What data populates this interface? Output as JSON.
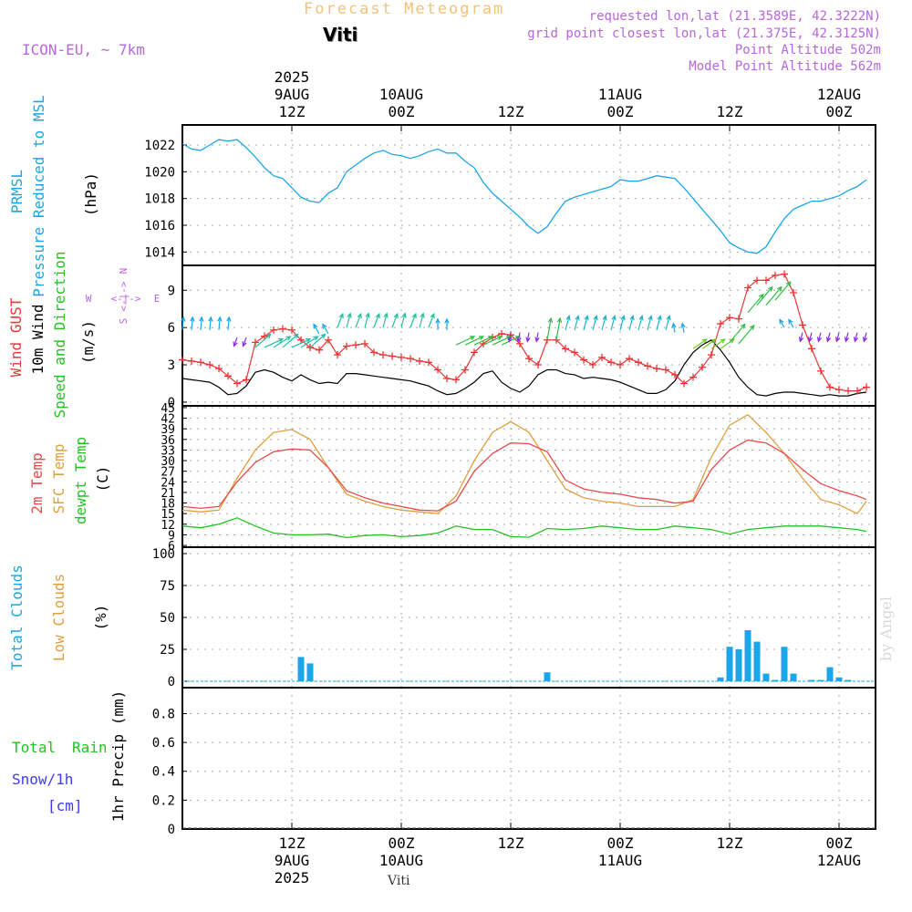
{
  "header": {
    "title": "Forecast Meteogram",
    "location": "Viti",
    "model": "ICON-EU, ~ 7km",
    "requested": "requested lon,lat (21.3589E, 42.3222N)",
    "gridpoint": "grid point closest lon,lat (21.375E, 42.3125N)",
    "point_alt": "Point Altitude 502m",
    "model_alt": "Model Point Altitude 562m",
    "footer_location": "Viti",
    "watermark": "by Angel"
  },
  "time_axis": {
    "top": [
      {
        "x": 12,
        "lines": [
          "2025",
          "9AUG",
          "12Z"
        ]
      },
      {
        "x": 24,
        "lines": [
          "10AUG",
          "00Z"
        ]
      },
      {
        "x": 36,
        "lines": [
          "12Z"
        ]
      },
      {
        "x": 48,
        "lines": [
          "11AUG",
          "00Z"
        ]
      },
      {
        "x": 60,
        "lines": [
          "12Z"
        ]
      },
      {
        "x": 72,
        "lines": [
          "12AUG",
          "00Z"
        ]
      }
    ],
    "bottom": [
      {
        "x": 12,
        "lines": [
          "12Z",
          "9AUG",
          "2025"
        ]
      },
      {
        "x": 24,
        "lines": [
          "00Z",
          "10AUG"
        ]
      },
      {
        "x": 36,
        "lines": [
          "12Z"
        ]
      },
      {
        "x": 48,
        "lines": [
          "00Z",
          "11AUG"
        ]
      },
      {
        "x": 60,
        "lines": [
          "12Z"
        ]
      },
      {
        "x": 72,
        "lines": [
          "00Z",
          "12AUG"
        ]
      }
    ]
  },
  "colors": {
    "pressure": "#1aa6e8",
    "gust": "#ee3535",
    "wind": "#000000",
    "temp2m": "#e84a4a",
    "sfc": "#dfa040",
    "dewpt": "#22c422",
    "total_clouds": "#1aa6e8",
    "low_clouds": "#dfa040",
    "rain": "#22c422",
    "snow": "#3c3cf0",
    "label_purple": "#b866dd",
    "title_orange": "#f5c27a"
  },
  "panels": {
    "pressure": {
      "labels": [
        "PRMSL",
        "Pressure Reduced to MSL",
        "(hPa)"
      ],
      "ticks": [
        "1014",
        "1016",
        "1018",
        "1020",
        "1022"
      ]
    },
    "wind": {
      "labels": [
        "Wind GUST",
        "10m Wind",
        "Speed and Direction",
        "(m/s)"
      ],
      "ticks": [
        "0",
        "3",
        "6",
        "9"
      ],
      "compass": {
        "n": "N",
        "s": "S",
        "w": "W",
        "e": "E",
        "arrows": "<-|->"
      }
    },
    "temperature": {
      "labels": [
        "2m Temp",
        "SFC Temp",
        "dewpt Temp",
        "(C)"
      ],
      "ticks": [
        "6",
        "9",
        "12",
        "15",
        "18",
        "21",
        "24",
        "27",
        "30",
        "33",
        "36",
        "39",
        "42",
        "45"
      ]
    },
    "clouds": {
      "labels": [
        "Total Clouds",
        "Low Clouds",
        "(%)"
      ],
      "ticks": [
        "0",
        "25",
        "50",
        "75",
        "100"
      ]
    },
    "precip": {
      "labels": [
        "Total",
        "Rain",
        "Snow/1h",
        "[cm]",
        "1hr Precip (mm)"
      ],
      "ticks": [
        "0",
        "0.2",
        "0.4",
        "0.6",
        "0.8"
      ]
    }
  },
  "chart_data": [
    {
      "type": "line",
      "title": "PRMSL Pressure Reduced to MSL",
      "ylabel": "(hPa)",
      "x_unit": "hours from 9AUG 00Z",
      "xlim": [
        0,
        76
      ],
      "ylim": [
        1013,
        1023.5
      ],
      "series": [
        {
          "name": "PRMSL",
          "x": [
            0,
            1,
            2,
            3,
            4,
            5,
            6,
            7,
            8,
            9,
            10,
            11,
            12,
            13,
            14,
            15,
            16,
            17,
            18,
            19,
            20,
            21,
            22,
            23,
            24,
            25,
            26,
            27,
            28,
            29,
            30,
            31,
            32,
            33,
            34,
            35,
            36,
            37,
            38,
            39,
            40,
            41,
            42,
            43,
            44,
            45,
            46,
            47,
            48,
            49,
            50,
            51,
            52,
            53,
            54,
            55,
            56,
            57,
            58,
            59,
            60,
            61,
            62,
            63,
            64,
            65,
            66,
            67,
            68,
            69,
            70,
            71,
            72,
            73,
            74,
            75
          ],
          "values": [
            1022.1,
            1021.7,
            1021.6,
            1022.0,
            1022.4,
            1022.3,
            1022.4,
            1021.8,
            1021.1,
            1020.3,
            1019.7,
            1019.5,
            1018.8,
            1018.1,
            1017.8,
            1017.7,
            1018.4,
            1018.8,
            1020.0,
            1020.5,
            1021.0,
            1021.4,
            1021.6,
            1021.3,
            1021.2,
            1021.0,
            1021.2,
            1021.5,
            1021.7,
            1021.4,
            1021.4,
            1020.8,
            1020.3,
            1019.2,
            1018.4,
            1017.8,
            1017.2,
            1016.6,
            1015.9,
            1015.4,
            1015.9,
            1016.9,
            1017.8,
            1018.1,
            1018.3,
            1018.5,
            1018.7,
            1018.9,
            1019.4,
            1019.3,
            1019.3,
            1019.5,
            1019.7,
            1019.6,
            1019.5,
            1018.8,
            1018.0,
            1017.2,
            1016.4,
            1015.6,
            1014.7,
            1014.3,
            1014.0,
            1013.9,
            1014.4,
            1015.5,
            1016.5,
            1017.2,
            1017.5,
            1017.8,
            1017.8,
            1018.0,
            1018.2,
            1018.6,
            1018.9,
            1019.4
          ]
        }
      ]
    },
    {
      "type": "line",
      "title": "Wind GUST / 10m Wind Speed and Direction",
      "ylabel": "(m/s)",
      "x_unit": "hours from 9AUG 00Z",
      "xlim": [
        0,
        76
      ],
      "ylim": [
        -0.3,
        11
      ],
      "series": [
        {
          "name": "Wind GUST",
          "x": [
            0,
            1,
            2,
            3,
            4,
            5,
            6,
            7,
            8,
            9,
            10,
            11,
            12,
            13,
            14,
            15,
            16,
            17,
            18,
            19,
            20,
            21,
            22,
            23,
            24,
            25,
            26,
            27,
            28,
            29,
            30,
            31,
            32,
            33,
            34,
            35,
            36,
            37,
            38,
            39,
            40,
            41,
            42,
            43,
            44,
            45,
            46,
            47,
            48,
            49,
            50,
            51,
            52,
            53,
            54,
            55,
            56,
            57,
            58,
            59,
            60,
            61,
            62,
            63,
            64,
            65,
            66,
            67,
            68,
            69,
            70,
            71,
            72,
            73,
            74,
            75
          ],
          "values": [
            3.4,
            3.3,
            3.2,
            3.0,
            2.7,
            2.1,
            1.5,
            1.8,
            4.8,
            5.3,
            5.8,
            5.9,
            5.8,
            5.0,
            4.4,
            4.2,
            5.0,
            3.8,
            4.5,
            4.6,
            4.7,
            4.0,
            3.8,
            3.7,
            3.6,
            3.5,
            3.3,
            3.2,
            2.6,
            1.9,
            1.8,
            2.6,
            4.0,
            4.7,
            5.2,
            5.5,
            5.4,
            4.7,
            3.5,
            3.0,
            5.0,
            5.0,
            4.3,
            4.0,
            3.4,
            3.0,
            3.6,
            3.2,
            3.0,
            3.5,
            3.2,
            2.9,
            2.7,
            2.6,
            2.2,
            1.5,
            2.0,
            2.8,
            3.8,
            6.3,
            6.8,
            6.7,
            9.2,
            9.8,
            9.8,
            10.2,
            10.3,
            8.8,
            6.2,
            4.3,
            2.5,
            1.2,
            1.0,
            0.9,
            0.9,
            1.2
          ]
        },
        {
          "name": "10m Wind",
          "x": [
            0,
            1,
            2,
            3,
            4,
            5,
            6,
            7,
            8,
            9,
            10,
            11,
            12,
            13,
            14,
            15,
            16,
            17,
            18,
            19,
            20,
            21,
            22,
            23,
            24,
            25,
            26,
            27,
            28,
            29,
            30,
            31,
            32,
            33,
            34,
            35,
            36,
            37,
            38,
            39,
            40,
            41,
            42,
            43,
            44,
            45,
            46,
            47,
            48,
            49,
            50,
            51,
            52,
            53,
            54,
            55,
            56,
            57,
            58,
            59,
            60,
            61,
            62,
            63,
            64,
            65,
            66,
            67,
            68,
            69,
            70,
            71,
            72,
            73,
            74,
            75
          ],
          "values": [
            1.9,
            1.8,
            1.7,
            1.6,
            1.2,
            0.6,
            0.7,
            1.3,
            2.4,
            2.6,
            2.4,
            2.0,
            1.7,
            2.2,
            1.8,
            1.5,
            1.6,
            1.5,
            2.3,
            2.3,
            2.2,
            2.1,
            2.0,
            1.9,
            1.8,
            1.7,
            1.5,
            1.3,
            0.9,
            0.6,
            0.7,
            1.1,
            1.6,
            2.3,
            2.5,
            1.6,
            1.1,
            0.8,
            1.3,
            2.2,
            2.6,
            2.6,
            2.3,
            2.2,
            1.9,
            2.0,
            1.9,
            1.8,
            1.6,
            1.3,
            1.0,
            0.7,
            0.7,
            1.0,
            1.7,
            3.0,
            4.0,
            4.6,
            5.0,
            4.2,
            3.2,
            2.0,
            1.2,
            0.6,
            0.5,
            0.7,
            0.8,
            0.8,
            0.7,
            0.6,
            0.5,
            0.6,
            0.5,
            0.5,
            0.7,
            0.8
          ]
        }
      ]
    },
    {
      "type": "line",
      "title": "2m Temp / SFC Temp / dewpt Temp",
      "ylabel": "(C)",
      "x_unit": "hours from 9AUG 00Z",
      "xlim": [
        0,
        76
      ],
      "ylim": [
        5.5,
        45.5
      ],
      "series": [
        {
          "name": "2m Temp",
          "x": [
            0,
            2,
            4,
            6,
            8,
            10,
            12,
            14,
            16,
            18,
            20,
            22,
            24,
            26,
            28,
            30,
            32,
            34,
            36,
            38,
            40,
            42,
            44,
            46,
            48,
            50,
            52,
            54,
            56,
            58,
            60,
            62,
            64,
            66,
            68,
            70,
            72,
            74,
            75
          ],
          "values": [
            17.0,
            16.5,
            17.0,
            24.0,
            29.5,
            32.5,
            33.3,
            33.0,
            28.0,
            21.5,
            19.5,
            18.0,
            17.0,
            16.0,
            15.8,
            18.5,
            27.0,
            32.0,
            35.0,
            34.8,
            32.5,
            24.5,
            22.0,
            21.0,
            20.5,
            19.5,
            19.0,
            18.0,
            18.5,
            27.5,
            33.0,
            35.8,
            35.0,
            32.0,
            27.5,
            23.5,
            21.5,
            20.0,
            19.0
          ]
        },
        {
          "name": "SFC Temp",
          "x": [
            0,
            2,
            4,
            6,
            8,
            10,
            12,
            14,
            16,
            18,
            20,
            22,
            24,
            26,
            28,
            30,
            32,
            34,
            36,
            38,
            40,
            42,
            44,
            46,
            48,
            50,
            52,
            54,
            56,
            58,
            60,
            62,
            64,
            66,
            68,
            70,
            72,
            74,
            75
          ],
          "values": [
            16.0,
            15.5,
            16.0,
            25.0,
            33.0,
            38.0,
            38.8,
            36.0,
            28.0,
            20.5,
            18.5,
            17.0,
            16.0,
            15.5,
            15.0,
            20.0,
            30.0,
            38.0,
            41.0,
            38.0,
            30.0,
            22.0,
            19.5,
            18.5,
            18.0,
            17.0,
            17.0,
            17.0,
            19.0,
            31.0,
            40.0,
            43.0,
            38.0,
            32.0,
            25.0,
            19.0,
            17.5,
            15.0,
            18.5
          ]
        },
        {
          "name": "dewpt Temp",
          "x": [
            0,
            2,
            4,
            6,
            8,
            10,
            12,
            14,
            16,
            18,
            20,
            22,
            24,
            26,
            28,
            30,
            32,
            34,
            36,
            38,
            40,
            42,
            44,
            46,
            48,
            50,
            52,
            54,
            56,
            58,
            60,
            62,
            64,
            66,
            68,
            70,
            72,
            74,
            75
          ],
          "values": [
            11.5,
            11.0,
            12.0,
            13.8,
            11.5,
            9.5,
            9.0,
            9.0,
            9.2,
            8.2,
            8.8,
            9.0,
            8.5,
            8.8,
            9.5,
            11.5,
            10.5,
            10.5,
            8.5,
            8.3,
            10.8,
            10.5,
            10.8,
            11.5,
            11.0,
            10.5,
            10.5,
            11.5,
            11.0,
            10.5,
            9.2,
            10.5,
            11.0,
            11.5,
            11.5,
            11.5,
            11.0,
            10.5,
            10.0
          ]
        }
      ]
    },
    {
      "type": "bar",
      "title": "Total Clouds / Low Clouds",
      "ylabel": "(%)",
      "x_unit": "hours from 9AUG 00Z",
      "xlim": [
        0,
        76
      ],
      "ylim": [
        -5,
        105
      ],
      "series": [
        {
          "name": "Total Clouds",
          "x": [
            13,
            14,
            40,
            59,
            60,
            61,
            62,
            63,
            64,
            65,
            66,
            67,
            69,
            70,
            71,
            72,
            73
          ],
          "values": [
            19,
            14,
            7,
            3,
            27,
            25,
            40,
            31,
            6,
            1,
            27,
            6,
            1,
            1,
            11,
            3,
            1
          ]
        },
        {
          "name": "Low Clouds",
          "x": [],
          "values": []
        }
      ]
    },
    {
      "type": "bar",
      "title": "1hr Precip",
      "ylabel": "1hr Precip (mm)",
      "x_unit": "hours from 9AUG 00Z",
      "xlim": [
        0,
        76
      ],
      "ylim": [
        0,
        0.98
      ],
      "series": [
        {
          "name": "Total Rain",
          "x": [],
          "values": []
        },
        {
          "name": "Snow/1h",
          "x": [],
          "values": []
        }
      ]
    }
  ]
}
